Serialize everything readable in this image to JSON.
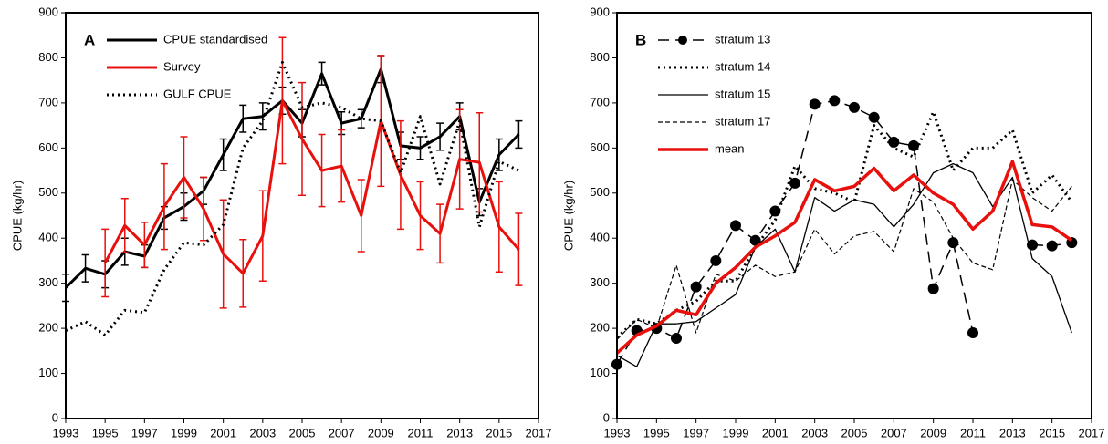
{
  "chart_data": [
    {
      "type": "line",
      "annotation": "A",
      "y_label": "CPUE (kg/hr)",
      "x": [
        1993,
        1994,
        1995,
        1996,
        1997,
        1998,
        1999,
        2000,
        2001,
        2002,
        2003,
        2004,
        2005,
        2006,
        2007,
        2008,
        2009,
        2010,
        2011,
        2012,
        2013,
        2014,
        2015,
        2016
      ],
      "xlim": [
        1993,
        2017
      ],
      "xticks": [
        1993,
        1995,
        1997,
        1999,
        2001,
        2003,
        2005,
        2007,
        2009,
        2011,
        2013,
        2015,
        2017
      ],
      "ylim": [
        0,
        900
      ],
      "yticks": [
        0,
        100,
        200,
        300,
        400,
        500,
        600,
        700,
        800,
        900
      ],
      "legend": "upper left",
      "series": [
        {
          "name": "CPUE standardised",
          "color": "#000000",
          "dash": "solid",
          "width": 3,
          "values": [
            290,
            333,
            320,
            370,
            360,
            445,
            470,
            505,
            585,
            665,
            670,
            705,
            655,
            765,
            655,
            665,
            775,
            605,
            600,
            625,
            670,
            480,
            585,
            630
          ],
          "errors": [
            30,
            30,
            30,
            30,
            25,
            25,
            30,
            30,
            35,
            30,
            30,
            30,
            30,
            25,
            25,
            20,
            30,
            30,
            25,
            30,
            30,
            30,
            35,
            30
          ]
        },
        {
          "name": "Survey",
          "color": "#e8100c",
          "dash": "solid",
          "width": 3,
          "values": [
            null,
            null,
            345,
            428,
            385,
            470,
            535,
            465,
            365,
            322,
            405,
            705,
            620,
            550,
            560,
            450,
            660,
            540,
            450,
            410,
            575,
            568,
            425,
            375
          ],
          "errors": [
            null,
            null,
            75,
            60,
            50,
            95,
            90,
            70,
            120,
            75,
            100,
            140,
            125,
            80,
            80,
            80,
            145,
            120,
            75,
            65,
            110,
            110,
            100,
            80
          ]
        },
        {
          "name": "GULF CPUE",
          "color": "#000000",
          "dash": "dotted",
          "width": 3,
          "values": [
            195,
            215,
            185,
            240,
            235,
            330,
            390,
            385,
            430,
            600,
            660,
            790,
            690,
            700,
            690,
            665,
            660,
            545,
            670,
            520,
            660,
            425,
            570,
            550
          ]
        }
      ]
    },
    {
      "type": "line",
      "annotation": "B",
      "y_label": "CPUE (kg/hr)",
      "x": [
        1993,
        1994,
        1995,
        1996,
        1997,
        1998,
        1999,
        2000,
        2001,
        2002,
        2003,
        2004,
        2005,
        2006,
        2007,
        2008,
        2009,
        2010,
        2011,
        2012,
        2013,
        2014,
        2015,
        2016
      ],
      "xlim": [
        1993,
        2017
      ],
      "xticks": [
        1993,
        1995,
        1997,
        1999,
        2001,
        2003,
        2005,
        2007,
        2009,
        2011,
        2013,
        2015,
        2017
      ],
      "ylim": [
        0,
        900
      ],
      "yticks": [
        0,
        100,
        200,
        300,
        400,
        500,
        600,
        700,
        800,
        900
      ],
      "legend": "upper left",
      "series": [
        {
          "name": "stratum 13",
          "color": "#000000",
          "dash": "longdash",
          "width": 1.5,
          "marker": "circle",
          "values": [
            120,
            195,
            200,
            178,
            292,
            350,
            428,
            395,
            460,
            522,
            697,
            705,
            690,
            668,
            613,
            605,
            288,
            390,
            190,
            null,
            null,
            385,
            383,
            390
          ]
        },
        {
          "name": "stratum 14",
          "color": "#000000",
          "dash": "dotted",
          "width": 3,
          "values": [
            180,
            220,
            210,
            240,
            260,
            305,
            305,
            380,
            440,
            560,
            510,
            500,
            480,
            650,
            600,
            580,
            680,
            550,
            600,
            600,
            640,
            500,
            540,
            480
          ]
        },
        {
          "name": "stratum 15",
          "color": "#000000",
          "dash": "solid",
          "width": 1.3,
          "values": [
            140,
            115,
            210,
            210,
            215,
            245,
            275,
            380,
            420,
            325,
            490,
            460,
            485,
            475,
            425,
            475,
            545,
            565,
            545,
            470,
            535,
            355,
            315,
            190
          ]
        },
        {
          "name": "stratum 17",
          "color": "#000000",
          "dash": "dashed",
          "width": 1.2,
          "values": [
            175,
            220,
            200,
            340,
            190,
            320,
            305,
            340,
            315,
            325,
            420,
            365,
            405,
            415,
            370,
            510,
            480,
            400,
            345,
            330,
            530,
            490,
            460,
            515
          ]
        },
        {
          "name": "mean",
          "color": "#e8100c",
          "dash": "solid",
          "width": 3.5,
          "values": [
            145,
            185,
            205,
            240,
            230,
            300,
            335,
            380,
            405,
            435,
            530,
            505,
            515,
            555,
            505,
            540,
            500,
            475,
            420,
            460,
            570,
            430,
            425,
            395
          ]
        }
      ]
    }
  ]
}
